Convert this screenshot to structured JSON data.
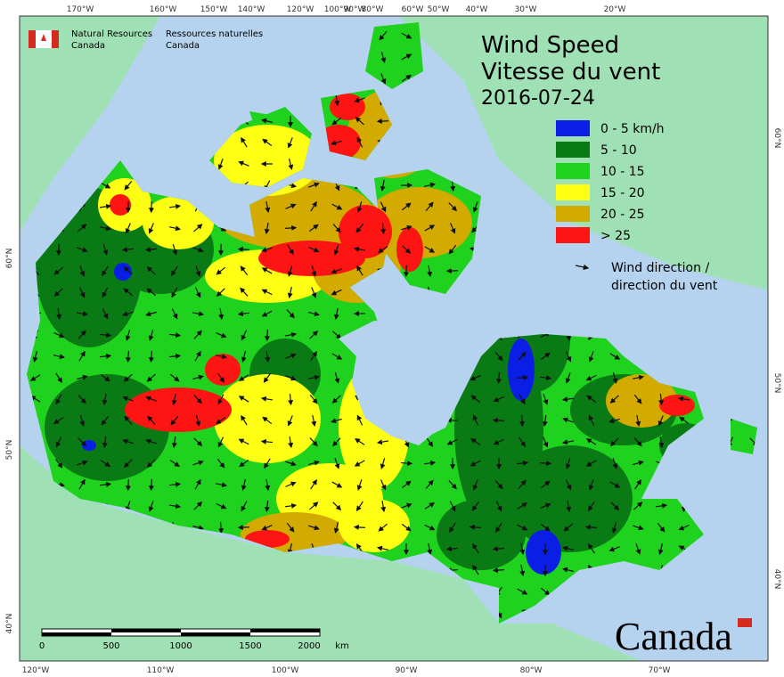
{
  "header": {
    "agency_en": [
      "Natural Resources",
      "Canada"
    ],
    "agency_fr": [
      "Ressources naturelles",
      "Canada"
    ],
    "title": [
      "Wind Speed",
      "Vitesse du vent"
    ],
    "date": "2016-07-24"
  },
  "legend": {
    "items": [
      {
        "label": "0 - 5 km/h",
        "color": "#0a1ee6"
      },
      {
        "label": "5 - 10",
        "color": "#0a7a14"
      },
      {
        "label": "10 - 15",
        "color": "#1ed21e"
      },
      {
        "label": "15 - 20",
        "color": "#ffff14"
      },
      {
        "label": "20 - 25",
        "color": "#d2aa00"
      },
      {
        "label": "> 25",
        "color": "#ff1414"
      }
    ],
    "arrow_label": [
      "Wind direction /",
      "direction du vent"
    ]
  },
  "graticule": {
    "top": [
      "170°W",
      "160°W",
      "150°W",
      "140°W",
      "120°W",
      "100°W",
      "90°W",
      "80°W",
      "60°W",
      "50°W",
      "40°W",
      "30°W",
      "20°W"
    ],
    "bottom": [
      "120°W",
      "110°W",
      "100°W",
      "90°W",
      "80°W",
      "70°W"
    ],
    "left": [
      "60°N",
      "50°N",
      "40°N"
    ],
    "right": [
      "60°N",
      "50°N",
      "40°N"
    ]
  },
  "scale_bar": {
    "labels": [
      "0",
      "500",
      "1000",
      "1500",
      "2000",
      "km"
    ]
  },
  "wordmark": "Canada"
}
